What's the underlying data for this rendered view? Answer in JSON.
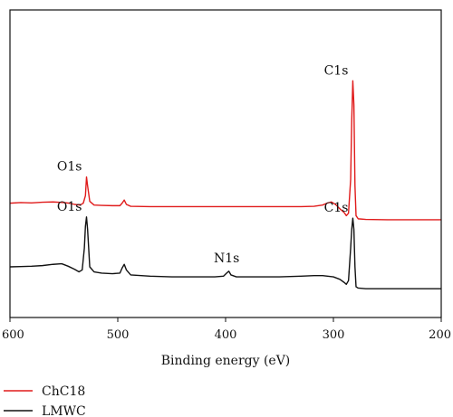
{
  "chart_data": {
    "type": "line",
    "xlabel": "Binding energy (eV)",
    "ylabel": "",
    "xlim": [
      600,
      200
    ],
    "x_reversed": true,
    "x_ticks": [
      600,
      500,
      400,
      300,
      200
    ],
    "grid": false,
    "legend_position": "bottom-left",
    "series": [
      {
        "name": "ChC18",
        "color": "#e01b1b",
        "offset": 1.0,
        "points": [
          [
            600,
            0.02
          ],
          [
            590,
            0.03
          ],
          [
            580,
            0.025
          ],
          [
            570,
            0.035
          ],
          [
            560,
            0.04
          ],
          [
            550,
            0.03
          ],
          [
            545,
            0.02
          ],
          [
            540,
            0.0
          ],
          [
            535,
            -0.01
          ],
          [
            532,
            0.02
          ],
          [
            530,
            0.14
          ],
          [
            529,
            0.44
          ],
          [
            528,
            0.3
          ],
          [
            526,
            0.05
          ],
          [
            522,
            -0.01
          ],
          [
            515,
            -0.015
          ],
          [
            505,
            -0.02
          ],
          [
            498,
            -0.02
          ],
          [
            496,
            0.02
          ],
          [
            494,
            0.07
          ],
          [
            492,
            0.0
          ],
          [
            488,
            -0.03
          ],
          [
            470,
            -0.035
          ],
          [
            450,
            -0.035
          ],
          [
            430,
            -0.035
          ],
          [
            410,
            -0.035
          ],
          [
            400,
            -0.035
          ],
          [
            390,
            -0.035
          ],
          [
            370,
            -0.035
          ],
          [
            350,
            -0.035
          ],
          [
            330,
            -0.035
          ],
          [
            318,
            -0.03
          ],
          [
            310,
            -0.01
          ],
          [
            306,
            0.02
          ],
          [
            302,
            0.04
          ],
          [
            298,
            0.0
          ],
          [
            294,
            -0.07
          ],
          [
            290,
            -0.13
          ],
          [
            288,
            -0.18
          ],
          [
            286,
            -0.14
          ],
          [
            284,
            0.4
          ],
          [
            283,
            1.35
          ],
          [
            282,
            1.98
          ],
          [
            281,
            1.6
          ],
          [
            280,
            0.3
          ],
          [
            279,
            -0.18
          ],
          [
            277,
            -0.23
          ],
          [
            270,
            -0.24
          ],
          [
            250,
            -0.245
          ],
          [
            230,
            -0.245
          ],
          [
            200,
            -0.245
          ]
        ]
      },
      {
        "name": "LMWC",
        "color": "#111111",
        "offset": 0.0,
        "points": [
          [
            600,
            0.0
          ],
          [
            590,
            0.005
          ],
          [
            580,
            0.01
          ],
          [
            570,
            0.02
          ],
          [
            560,
            0.04
          ],
          [
            552,
            0.05
          ],
          [
            546,
            0.01
          ],
          [
            540,
            -0.04
          ],
          [
            536,
            -0.08
          ],
          [
            533,
            -0.05
          ],
          [
            531,
            0.3
          ],
          [
            530,
            0.65
          ],
          [
            529,
            0.8
          ],
          [
            528,
            0.6
          ],
          [
            526,
            0.0
          ],
          [
            522,
            -0.08
          ],
          [
            515,
            -0.1
          ],
          [
            505,
            -0.11
          ],
          [
            498,
            -0.1
          ],
          [
            496,
            -0.02
          ],
          [
            494,
            0.04
          ],
          [
            492,
            -0.05
          ],
          [
            488,
            -0.13
          ],
          [
            470,
            -0.15
          ],
          [
            450,
            -0.16
          ],
          [
            430,
            -0.16
          ],
          [
            410,
            -0.16
          ],
          [
            402,
            -0.15
          ],
          [
            399,
            -0.1
          ],
          [
            397,
            -0.07
          ],
          [
            395,
            -0.13
          ],
          [
            390,
            -0.16
          ],
          [
            370,
            -0.16
          ],
          [
            350,
            -0.16
          ],
          [
            330,
            -0.15
          ],
          [
            318,
            -0.14
          ],
          [
            310,
            -0.14
          ],
          [
            300,
            -0.16
          ],
          [
            294,
            -0.2
          ],
          [
            290,
            -0.25
          ],
          [
            288,
            -0.28
          ],
          [
            286,
            -0.22
          ],
          [
            284,
            0.3
          ],
          [
            283,
            0.6
          ],
          [
            282,
            0.78
          ],
          [
            281,
            0.6
          ],
          [
            280,
            0.0
          ],
          [
            279,
            -0.32
          ],
          [
            277,
            -0.34
          ],
          [
            270,
            -0.35
          ],
          [
            250,
            -0.35
          ],
          [
            230,
            -0.35
          ],
          [
            200,
            -0.35
          ]
        ]
      }
    ],
    "annotations": [
      {
        "text": "C1s",
        "x": 283,
        "series": "ChC18"
      },
      {
        "text": "O1s",
        "x": 529,
        "series": "ChC18"
      },
      {
        "text": "O1s",
        "x": 529,
        "series": "LMWC"
      },
      {
        "text": "N1s",
        "x": 398,
        "series": "LMWC"
      },
      {
        "text": "C1s",
        "x": 283,
        "series": "LMWC"
      }
    ]
  }
}
